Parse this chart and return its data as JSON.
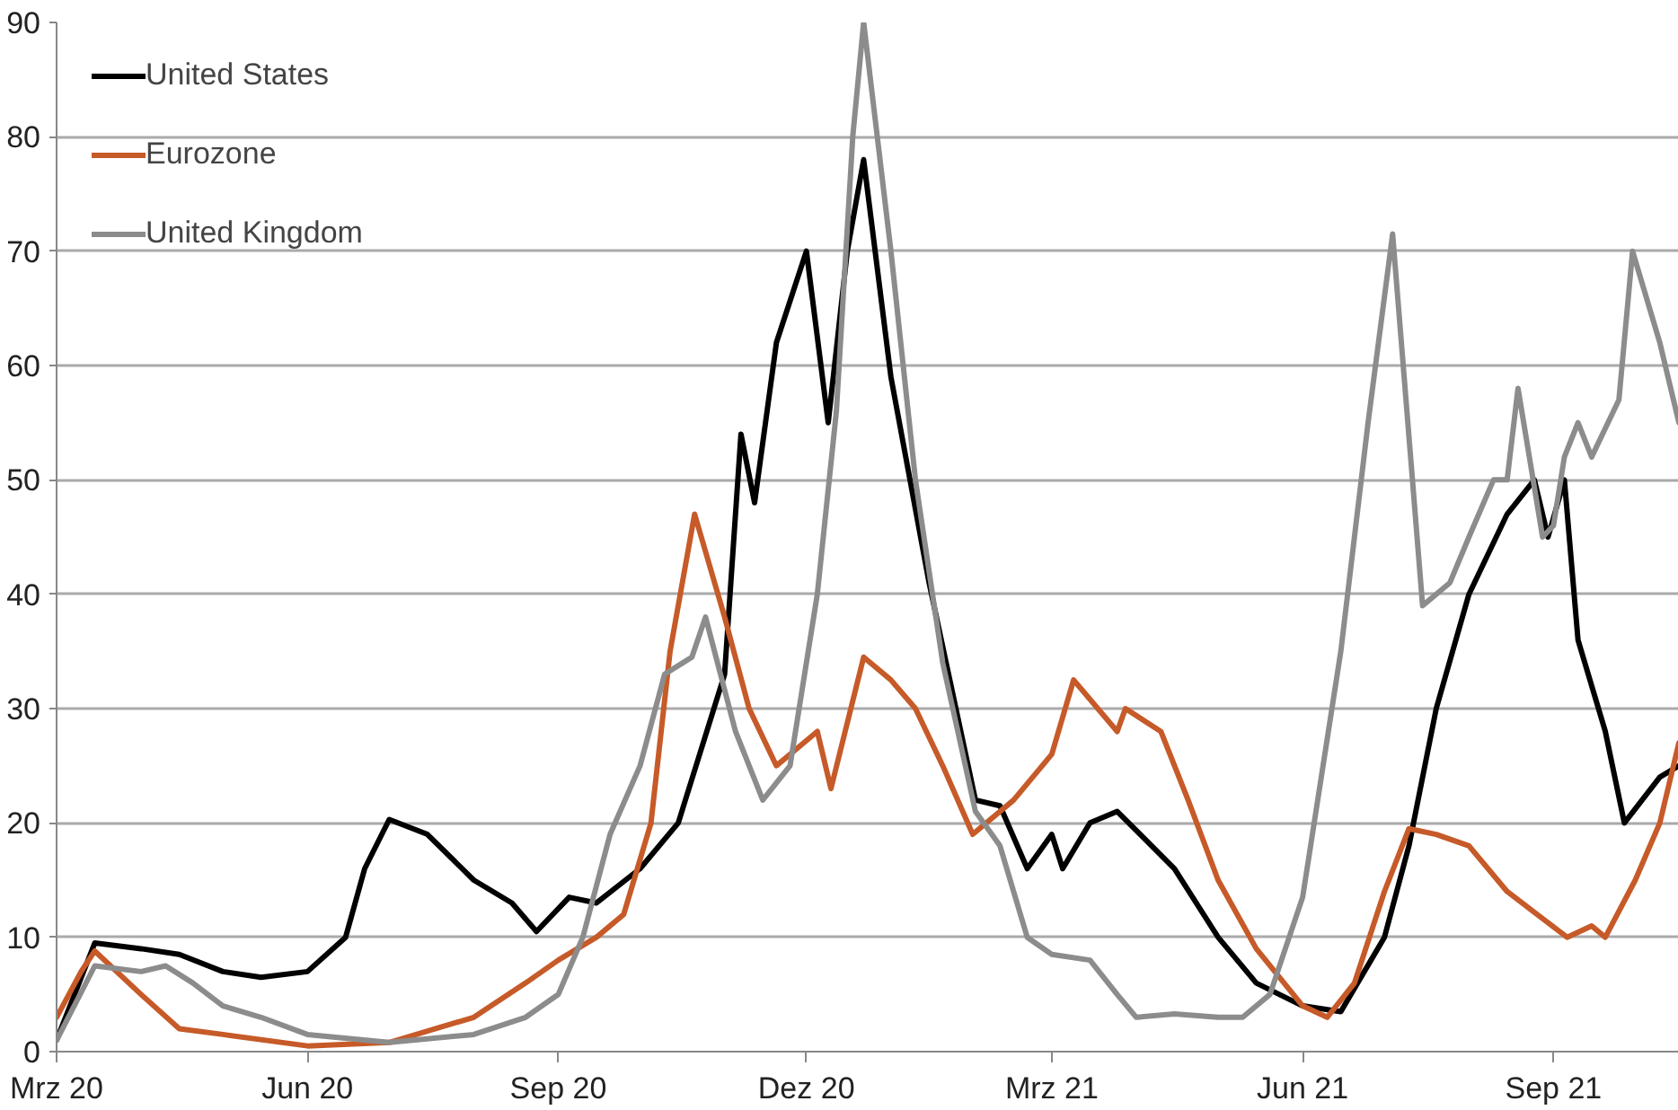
{
  "chart_data": {
    "type": "line",
    "xlim": [
      "2020-03-01",
      "2021-10-17"
    ],
    "ylim": [
      0,
      90
    ],
    "yticks": [
      0,
      10,
      20,
      30,
      40,
      50,
      60,
      70,
      80,
      90
    ],
    "xticks": [
      {
        "value": "2020-03-01",
        "label": "Mrz 20"
      },
      {
        "value": "2020-06-01",
        "label": "Jun 20"
      },
      {
        "value": "2020-09-01",
        "label": "Sep 20"
      },
      {
        "value": "2020-12-01",
        "label": "Dez 20"
      },
      {
        "value": "2021-03-01",
        "label": "Mrz 21"
      },
      {
        "value": "2021-06-01",
        "label": "Jun 21"
      },
      {
        "value": "2021-09-01",
        "label": "Sep 21"
      }
    ],
    "grid": "y",
    "legend": "top left",
    "line_style": "solid",
    "marker": "none",
    "series": [
      {
        "name": "United States",
        "color": "#000000",
        "x": [
          "2020-03-01",
          "2020-03-15",
          "2020-04-01",
          "2020-04-15",
          "2020-05-01",
          "2020-05-15",
          "2020-06-01",
          "2020-06-15",
          "2020-06-22",
          "2020-07-01",
          "2020-07-15",
          "2020-08-01",
          "2020-08-15",
          "2020-08-24",
          "2020-09-05",
          "2020-09-15",
          "2020-10-01",
          "2020-10-15",
          "2020-11-01",
          "2020-11-07",
          "2020-11-12",
          "2020-11-20",
          "2020-12-01",
          "2020-12-09",
          "2020-12-16",
          "2020-12-22",
          "2021-01-01",
          "2021-01-15",
          "2021-02-01",
          "2021-02-10",
          "2021-02-20",
          "2021-03-01",
          "2021-03-05",
          "2021-03-15",
          "2021-03-25",
          "2021-04-15",
          "2021-05-01",
          "2021-05-15",
          "2021-06-01",
          "2021-06-15",
          "2021-07-01",
          "2021-07-10",
          "2021-07-20",
          "2021-08-01",
          "2021-08-15",
          "2021-08-25",
          "2021-08-30",
          "2021-09-05",
          "2021-09-10",
          "2021-09-20",
          "2021-09-27",
          "2021-10-10",
          "2021-10-17"
        ],
        "values": [
          1,
          9.5,
          9,
          8.5,
          7,
          6.5,
          7,
          10,
          16,
          20.3,
          19,
          15,
          13,
          10.5,
          13.5,
          13,
          16,
          20,
          33,
          54,
          48,
          62,
          70,
          55,
          70,
          78,
          59,
          41,
          22,
          21.5,
          16,
          19,
          16,
          20,
          21,
          16,
          10,
          6,
          4,
          3.5,
          10,
          18,
          30,
          40,
          47,
          50,
          45,
          50,
          36,
          28,
          20,
          24,
          25
        ]
      },
      {
        "name": "Eurozone",
        "color": "#c65a28",
        "x": [
          "2020-03-01",
          "2020-03-10",
          "2020-03-15",
          "2020-04-01",
          "2020-04-15",
          "2020-05-01",
          "2020-06-01",
          "2020-07-01",
          "2020-08-01",
          "2020-08-20",
          "2020-09-01",
          "2020-09-15",
          "2020-09-25",
          "2020-10-05",
          "2020-10-12",
          "2020-10-21",
          "2020-11-01",
          "2020-11-10",
          "2020-11-20",
          "2020-11-30",
          "2020-12-05",
          "2020-12-10",
          "2020-12-22",
          "2021-01-01",
          "2021-01-10",
          "2021-01-20",
          "2021-01-31",
          "2021-02-15",
          "2021-03-01",
          "2021-03-09",
          "2021-03-25",
          "2021-03-28",
          "2021-04-10",
          "2021-04-20",
          "2021-05-01",
          "2021-05-15",
          "2021-06-01",
          "2021-06-10",
          "2021-06-20",
          "2021-07-01",
          "2021-07-10",
          "2021-07-20",
          "2021-08-01",
          "2021-08-15",
          "2021-09-06",
          "2021-09-15",
          "2021-09-20",
          "2021-10-01",
          "2021-10-10",
          "2021-10-17"
        ],
        "values": [
          3,
          7,
          8.8,
          5,
          2,
          1.5,
          0.5,
          0.8,
          3,
          6,
          8,
          10,
          12,
          20,
          35,
          47,
          38,
          30,
          25,
          27,
          28,
          23,
          34.5,
          32.5,
          30,
          25,
          19,
          22,
          26,
          32.5,
          28,
          30,
          28,
          22,
          15,
          9,
          4,
          3,
          6,
          14,
          19.5,
          19,
          18,
          14,
          10,
          11,
          10,
          15,
          20,
          27
        ]
      },
      {
        "name": "United Kingdom",
        "color": "#8c8c8c",
        "x": [
          "2020-03-01",
          "2020-03-15",
          "2020-04-01",
          "2020-04-10",
          "2020-04-20",
          "2020-05-01",
          "2020-05-15",
          "2020-06-01",
          "2020-07-01",
          "2020-08-01",
          "2020-08-20",
          "2020-09-01",
          "2020-09-10",
          "2020-09-20",
          "2020-10-01",
          "2020-10-10",
          "2020-10-20",
          "2020-10-25",
          "2020-11-05",
          "2020-11-15",
          "2020-11-25",
          "2020-12-05",
          "2020-12-12",
          "2020-12-18",
          "2020-12-22",
          "2021-01-01",
          "2021-01-10",
          "2021-01-20",
          "2021-02-01",
          "2021-02-10",
          "2021-02-20",
          "2021-03-01",
          "2021-03-15",
          "2021-03-25",
          "2021-04-01",
          "2021-04-15",
          "2021-05-01",
          "2021-05-10",
          "2021-05-20",
          "2021-06-01",
          "2021-06-15",
          "2021-06-25",
          "2021-07-04",
          "2021-07-15",
          "2021-07-25",
          "2021-08-01",
          "2021-08-10",
          "2021-08-15",
          "2021-08-19",
          "2021-08-28",
          "2021-09-01",
          "2021-09-05",
          "2021-09-10",
          "2021-09-15",
          "2021-09-25",
          "2021-09-30",
          "2021-10-05",
          "2021-10-10",
          "2021-10-17"
        ],
        "values": [
          1,
          7.5,
          7,
          7.5,
          6,
          4,
          3,
          1.5,
          0.8,
          1.5,
          3,
          5,
          10,
          19,
          25,
          33,
          34.5,
          38,
          28,
          22,
          25,
          40,
          56,
          80,
          90,
          70,
          50,
          34,
          21,
          18,
          10,
          8.5,
          8,
          5,
          3,
          3.3,
          3,
          3,
          5,
          13.5,
          35,
          55,
          71.5,
          39,
          41,
          45,
          50,
          50,
          58,
          45,
          46,
          52,
          55,
          52,
          57,
          70,
          66,
          62,
          55
        ]
      }
    ]
  }
}
